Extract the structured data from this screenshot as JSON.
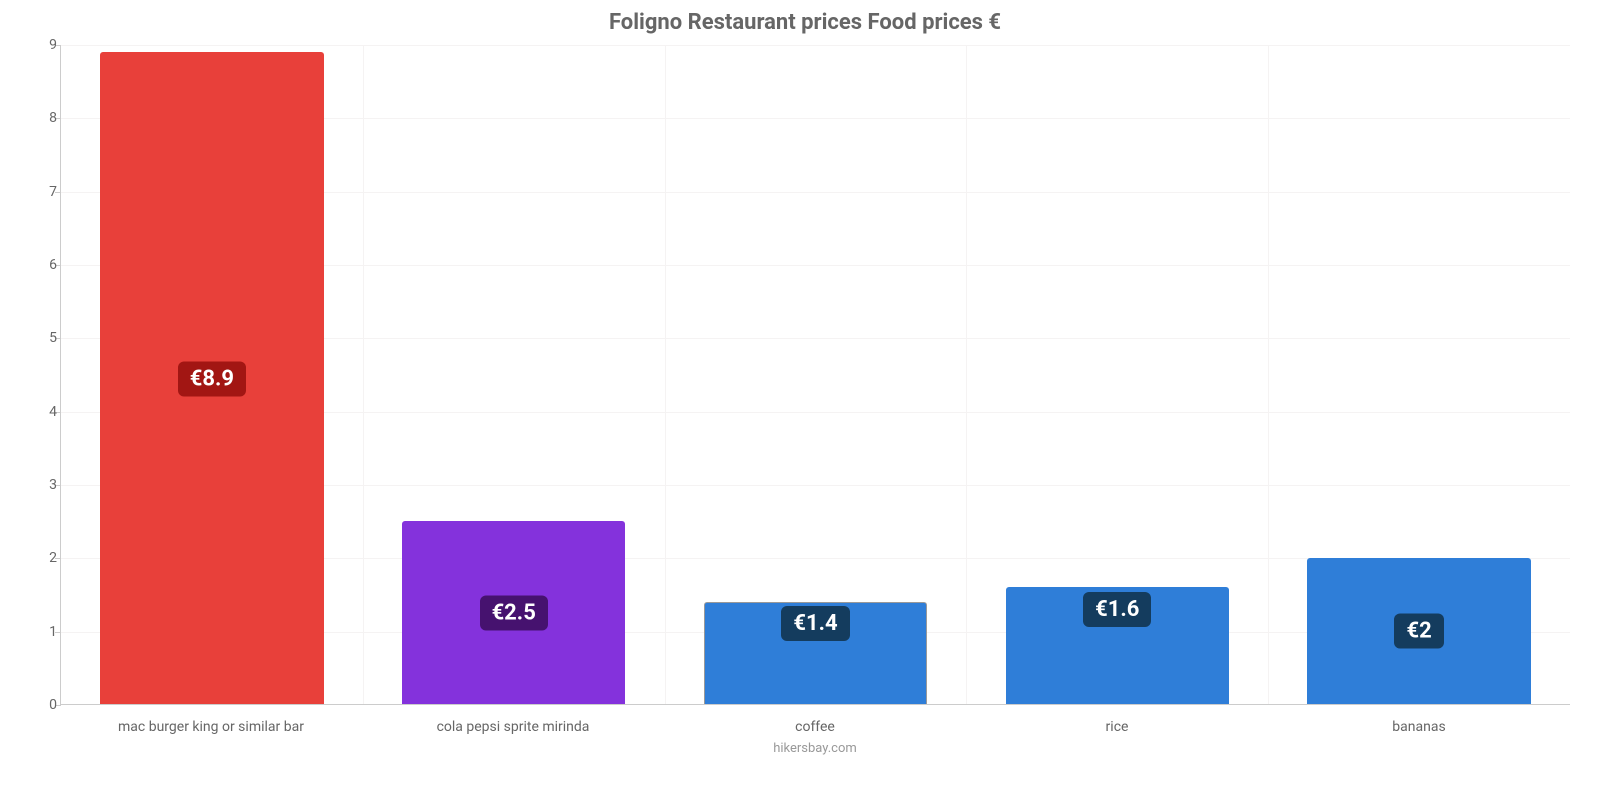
{
  "chart": {
    "type": "bar",
    "title": "Foligno Restaurant prices Food prices €",
    "title_color": "#666666",
    "title_fontsize": 22,
    "background_color": "#ffffff",
    "grid_color": "#f5f3f3",
    "axis_color": "#cccccc",
    "ylim": [
      0,
      9
    ],
    "yticks": [
      0,
      1,
      2,
      3,
      4,
      5,
      6,
      7,
      8,
      9
    ],
    "label_fontsize": 14,
    "label_color": "#666666",
    "categories": [
      "mac burger king or similar bar",
      "cola pepsi sprite mirinda",
      "coffee",
      "rice",
      "bananas"
    ],
    "values": [
      8.9,
      2.5,
      1.4,
      1.6,
      2.0
    ],
    "value_labels": [
      "€8.9",
      "€2.5",
      "€1.4",
      "€1.6",
      "€2"
    ],
    "bar_colors": [
      "#e8403a",
      "#8432dc",
      "#2f7ed8",
      "#2f7ed8",
      "#2f7ed8"
    ],
    "bar_borders": [
      "#e8403a",
      "#8432dc",
      "#999999",
      "#2f7ed8",
      "#2f7ed8"
    ],
    "label_bg_colors": [
      "#a21613",
      "#46126f",
      "#143c5e",
      "#143c5e",
      "#143c5e"
    ],
    "value_label_fontsize": 22,
    "bar_width_ratio": 0.74,
    "credit": "hikersbay.com",
    "credit_color": "#999999"
  }
}
